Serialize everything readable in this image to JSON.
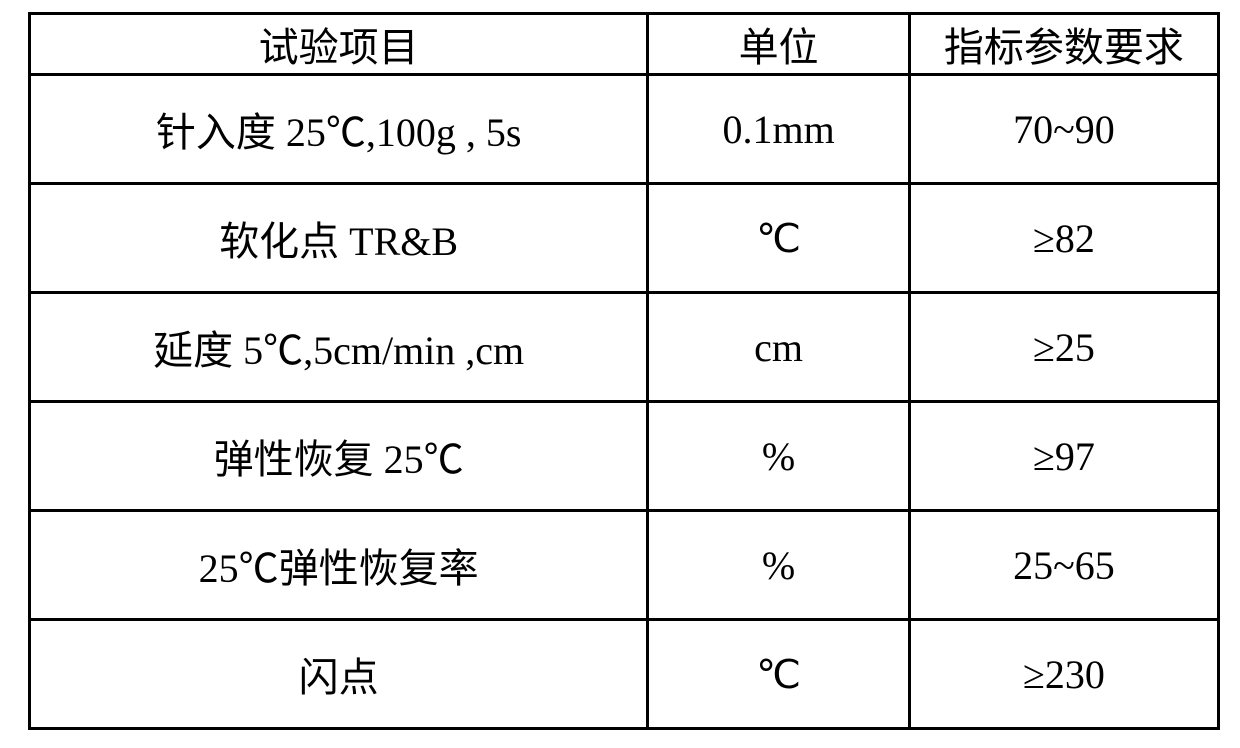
{
  "table": {
    "border_color": "#000000",
    "text_color": "#000000",
    "background_color": "#ffffff",
    "header_fontsize_pt": 30,
    "body_fontsize_pt": 30,
    "column_widths_pct": [
      52,
      22,
      26
    ],
    "columns": [
      "试验项目",
      "单位",
      "指标参数要求"
    ],
    "rows": [
      {
        "item": "针入度 25℃,100g , 5s",
        "unit": "0.1mm",
        "spec": "70~90"
      },
      {
        "item": "软化点 TR&B",
        "unit": "℃",
        "spec": "≥82"
      },
      {
        "item": "延度 5℃,5cm/min ,cm",
        "unit": "cm",
        "spec": "≥25"
      },
      {
        "item": "弹性恢复   25℃",
        "unit": "%",
        "spec": "≥97"
      },
      {
        "item": "25℃弹性恢复率",
        "unit": "%",
        "spec": "25~65"
      },
      {
        "item": "闪点",
        "unit": "℃",
        "spec": "≥230"
      }
    ]
  }
}
